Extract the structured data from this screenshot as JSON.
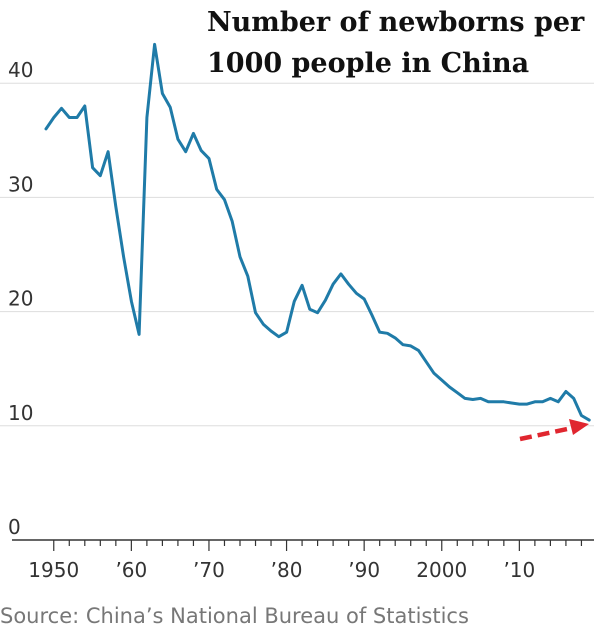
{
  "chart_data": {
    "type": "line",
    "title_lines": [
      "Number of newborns per",
      "1000 people in China"
    ],
    "source": "Source: China’s National Bureau of Statistics",
    "xlabel": "",
    "ylabel": "",
    "xlim": [
      1949,
      2019
    ],
    "ylim": [
      0,
      45
    ],
    "yticks": [
      0,
      10,
      20,
      30,
      40
    ],
    "ytick_labels": [
      "0",
      "10",
      "20",
      "30",
      "40"
    ],
    "xticks": [
      1950,
      1960,
      1970,
      1980,
      1990,
      2000,
      2010
    ],
    "xtick_labels": [
      "1950",
      "’60",
      "’70",
      "’80",
      "’90",
      "2000",
      "’10"
    ],
    "grid": "horizontal",
    "line_color": "#1f7ba8",
    "annotation": {
      "type": "dashed-arrow",
      "color": "#e0262f",
      "points_to_x": 2019
    },
    "series": [
      {
        "x": [
          1949,
          1950,
          1951,
          1952,
          1953,
          1954,
          1955,
          1956,
          1957,
          1958,
          1959,
          1960,
          1961,
          1962,
          1963,
          1964,
          1965,
          1966,
          1967,
          1968,
          1969,
          1970,
          1971,
          1972,
          1973,
          1974,
          1975,
          1976,
          1977,
          1978,
          1979,
          1980,
          1981,
          1982,
          1983,
          1984,
          1985,
          1986,
          1987,
          1988,
          1989,
          1990,
          1991,
          1992,
          1993,
          1994,
          1995,
          1996,
          1997,
          1998,
          1999,
          2000,
          2001,
          2002,
          2003,
          2004,
          2005,
          2006,
          2007,
          2008,
          2009,
          2010,
          2011,
          2012,
          2013,
          2014,
          2015,
          2016,
          2017,
          2018,
          2019
        ],
        "values": [
          36.0,
          37.0,
          37.8,
          37.0,
          37.0,
          38.0,
          32.6,
          31.9,
          34.0,
          29.2,
          24.8,
          20.9,
          18.0,
          37.0,
          43.4,
          39.1,
          37.9,
          35.1,
          34.0,
          35.6,
          34.1,
          33.4,
          30.7,
          29.8,
          27.9,
          24.8,
          23.1,
          19.9,
          18.9,
          18.3,
          17.8,
          18.2,
          20.9,
          22.3,
          20.2,
          19.9,
          21.0,
          22.4,
          23.3,
          22.4,
          21.6,
          21.1,
          19.7,
          18.2,
          18.1,
          17.7,
          17.1,
          17.0,
          16.6,
          15.6,
          14.6,
          14.0,
          13.4,
          12.9,
          12.4,
          12.3,
          12.4,
          12.1,
          12.1,
          12.1,
          12.0,
          11.9,
          11.9,
          12.1,
          12.1,
          12.4,
          12.1,
          13.0,
          12.4,
          10.9,
          10.5
        ]
      }
    ]
  }
}
